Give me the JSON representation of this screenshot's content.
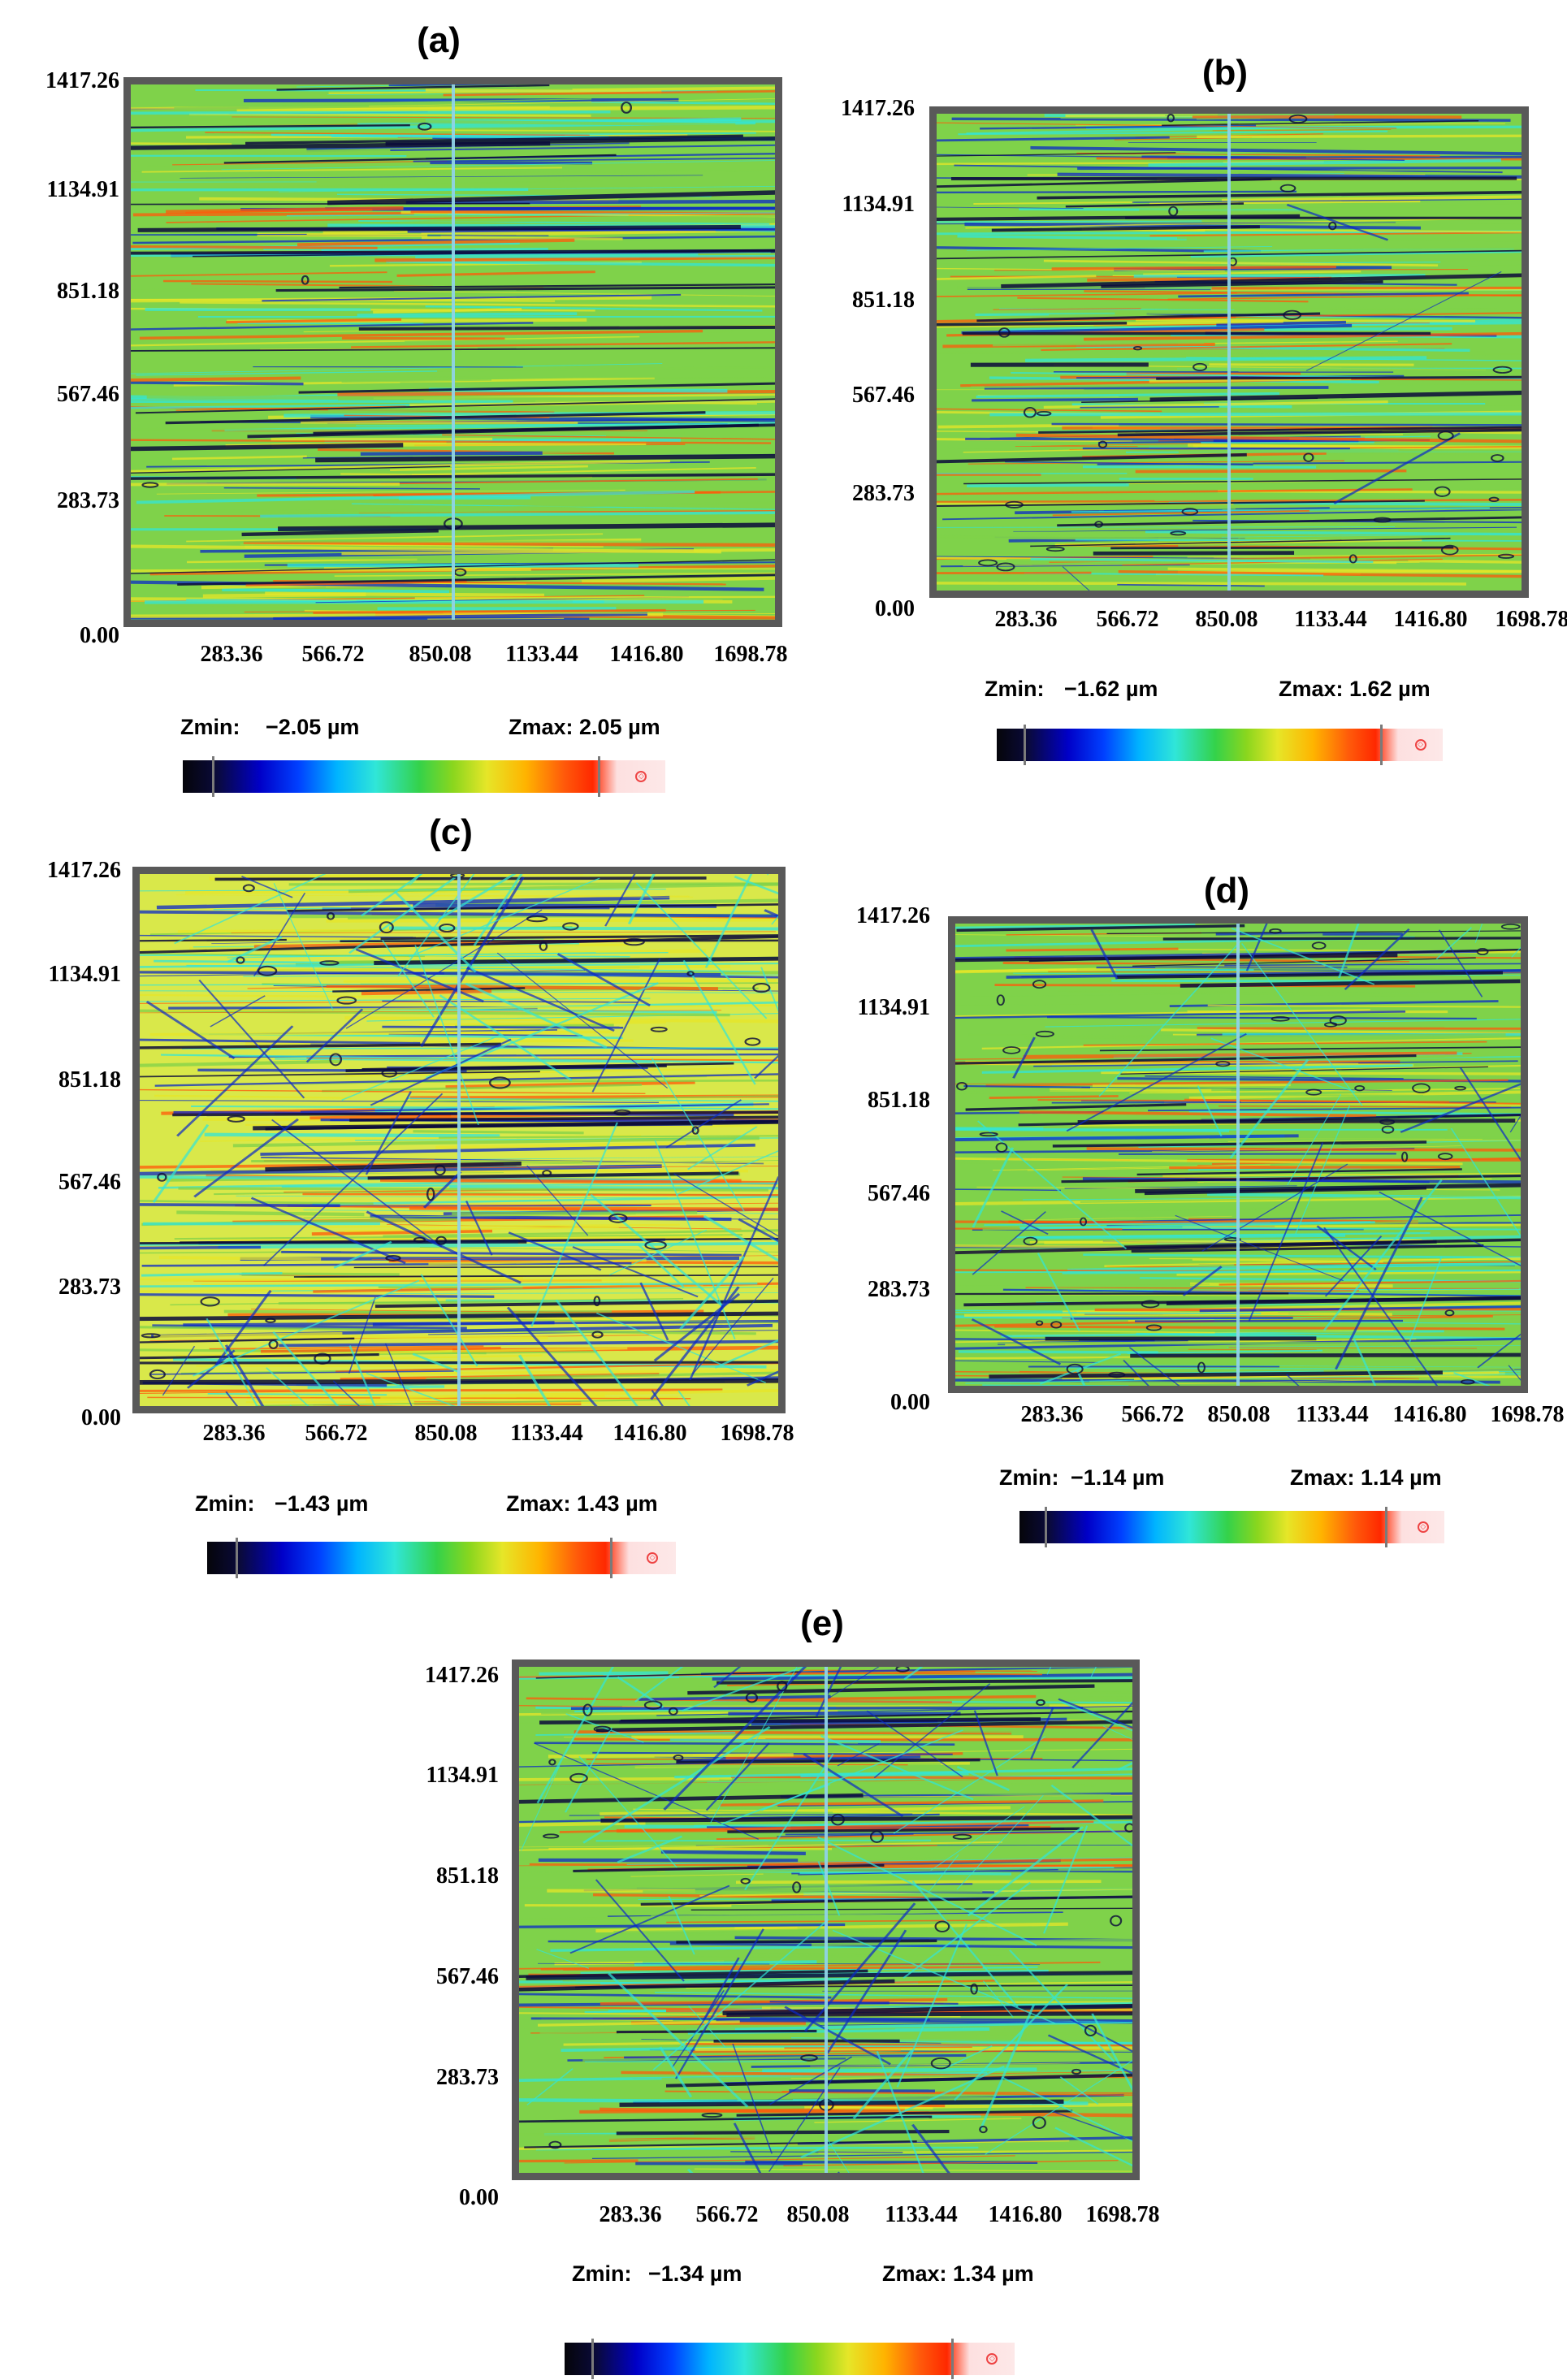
{
  "panels": [
    {
      "label": "(a)",
      "y_ticks": [
        "1417.26",
        "1134.91",
        "851.18",
        "567.46",
        "283.73"
      ],
      "origin": "0.00",
      "x_ticks": [
        "283.36",
        "566.72",
        "850.08",
        "1133.44",
        "1416.80",
        "1698.78"
      ],
      "zmin_key": "Zmin:",
      "zmin_value": "−2.05 µm",
      "zmax": "Zmax: 2.05 µm"
    },
    {
      "label": "(b)",
      "y_ticks": [
        "1417.26",
        "1134.91",
        "851.18",
        "567.46",
        "283.73"
      ],
      "origin": "0.00",
      "x_ticks": [
        "283.36",
        "566.72",
        "850.08",
        "1133.44",
        "1416.80",
        "1698.78"
      ],
      "zmin_key": "Zmin:",
      "zmin_value": "−1.62 µm",
      "zmax": "Zmax: 1.62 µm"
    },
    {
      "label": "(c)",
      "y_ticks": [
        "1417.26",
        "1134.91",
        "851.18",
        "567.46",
        "283.73"
      ],
      "origin": "0.00",
      "x_ticks": [
        "283.36",
        "566.72",
        "850.08",
        "1133.44",
        "1416.80",
        "1698.78"
      ],
      "zmin_key": "Zmin:",
      "zmin_value": "−1.43 µm",
      "zmax": "Zmax: 1.43 µm"
    },
    {
      "label": "(d)",
      "y_ticks": [
        "1417.26",
        "1134.91",
        "851.18",
        "567.46",
        "283.73"
      ],
      "origin": "0.00",
      "x_ticks": [
        "283.36",
        "566.72",
        "850.08",
        "1133.44",
        "1416.80",
        "1698.78"
      ],
      "zmin_key": "Zmin:",
      "zmin_value": "−1.14 µm",
      "zmax": "Zmax: 1.14 µm"
    },
    {
      "label": "(e)",
      "y_ticks": [
        "1417.26",
        "1134.91",
        "851.18",
        "567.46",
        "283.73"
      ],
      "origin": "0.00",
      "x_ticks": [
        "283.36",
        "566.72",
        "850.08",
        "1133.44",
        "1416.80",
        "1698.78"
      ],
      "zmin_key": "Zmin:",
      "zmin_value": "−1.34 µm",
      "zmax": "Zmax: 1.34 µm"
    }
  ],
  "colors": {
    "frame": "#595959",
    "scan_line": "#8fd3e6",
    "base_green": "#7fd24a",
    "yellow": "#e6e628",
    "cyan": "#30e6d8",
    "blue": "#0a28c8",
    "navy": "#0a0a3a",
    "orange": "#ff5a0a"
  }
}
